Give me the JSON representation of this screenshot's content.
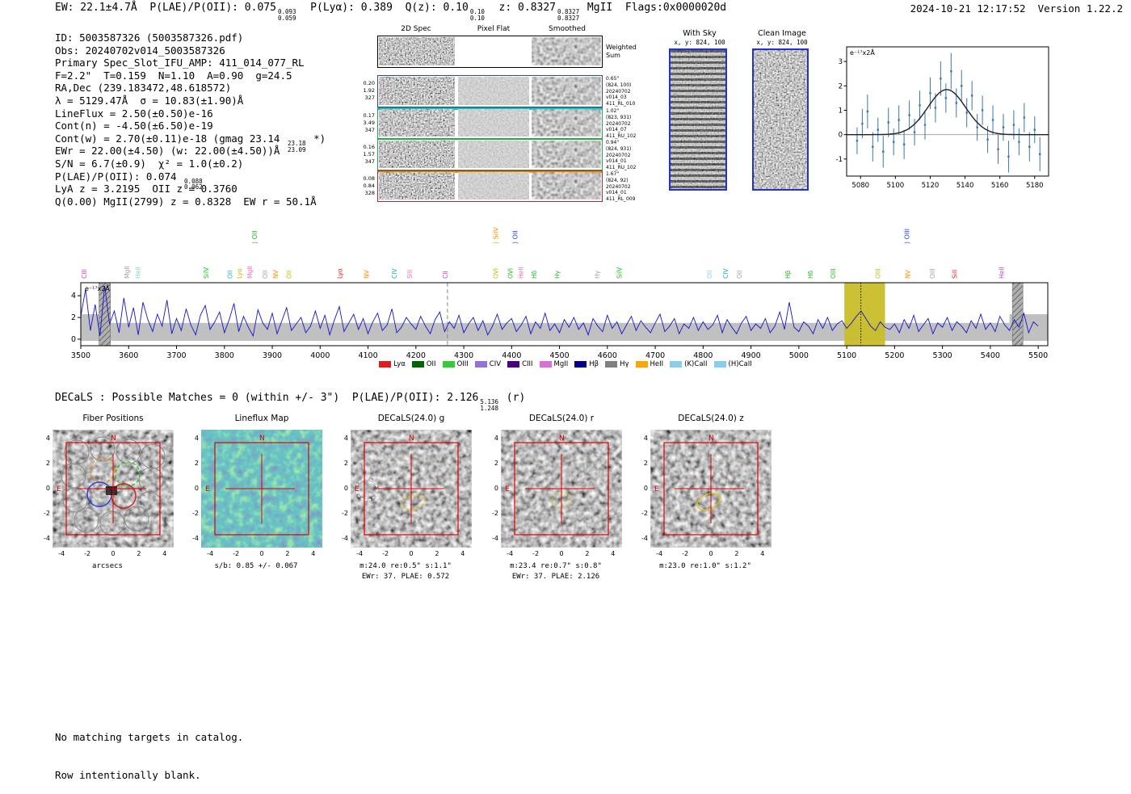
{
  "header": {
    "parts": [
      {
        "t": "EW: 22.1±4.7Å  P(LAE)/P(OII): 0.075"
      },
      {
        "sup": "0.093",
        "sub": "0.059"
      },
      {
        "t": "  P(Lyα): 0.389  Q(z): 0.10"
      },
      {
        "sup": "0.10",
        "sub": "0.10"
      },
      {
        "t": "  z: 0.8327"
      },
      {
        "sup": "0.8327",
        "sub": "0.8327"
      },
      {
        "t": " MgII  Flags:0x0000020d"
      }
    ],
    "right": "2024-10-21 12:17:52  Version 1.22.2"
  },
  "info": {
    "lines": [
      [
        {
          "t": "ID: 5003587326 (5003587326.pdf)"
        }
      ],
      [
        {
          "t": "Obs: 20240702v014_5003587326"
        }
      ],
      [
        {
          "t": "Primary Spec_Slot_IFU_AMP: 411_014_077_RL"
        }
      ],
      [
        {
          "t": "F=2.2\"  T=0.159  N=1.10  A=0.90  g=24.5"
        }
      ],
      [
        {
          "t": "RA,Dec (239.183472,48.618572)"
        }
      ],
      [
        {
          "t": "λ = 5129.47Å  σ = 10.83(±1.90)Å"
        }
      ],
      [
        {
          "t": "LineFlux = 2.50(±0.50)e-16"
        }
      ],
      [
        {
          "t": "Cont(n) = -4.50(±6.50)e-19"
        }
      ],
      [
        {
          "t": "Cont(w) = 2.70(±0.11)e-18 (gmag 23.14 "
        },
        {
          "sup": "23.18",
          "sub": "23.09"
        },
        {
          "t": " *)"
        }
      ],
      [
        {
          "t": "EWr = 22.00(±4.50) (w: 22.00(±4.50))Å"
        }
      ],
      [
        {
          "t": "S/N = 6.7(±0.9)  χ² = 1.0(±0.2)"
        }
      ],
      [
        {
          "t": "P(LAE)/P(OII): 0.074 "
        },
        {
          "sup": "0.088",
          "sub": "0.062"
        }
      ],
      [
        {
          "t": "LyA z = 3.2195  OII z = 0.3760"
        }
      ],
      [
        {
          "t": "Q(0.00) MgII(2799) z = 0.8328  EW r = 50.1Å"
        }
      ]
    ]
  },
  "spec2d": {
    "col_titles": [
      "2D Spec",
      "Pixel Flat",
      "Smoothed"
    ],
    "rows": [
      {
        "border": "#000000",
        "left": [],
        "right": [
          "Weighted",
          "Sum"
        ],
        "flat": "white"
      },
      {
        "border": "#2244cc",
        "left": [
          "0.20",
          "1.92",
          "327"
        ],
        "right": [
          "0.65\"",
          "(824, 100)",
          "20240702",
          "v014_03",
          "411_RL_010"
        ]
      },
      {
        "border": "#22aa44",
        "top": "#00cccc",
        "left": [
          "0.17",
          "3.49",
          "347"
        ],
        "right": [
          "1.02\"",
          "(823, 931)",
          "20240702",
          "v014_07",
          "411_RU_102"
        ]
      },
      {
        "border": "#22aa44",
        "left": [
          "0.16",
          "1.57",
          "347"
        ],
        "right": [
          "0.94\"",
          "(824, 931)",
          "20240702",
          "v014_01",
          "411_RU_102"
        ]
      },
      {
        "border": "#cc2222",
        "top": "#ff8800",
        "left": [
          "0.08",
          "0.84",
          "328"
        ],
        "right": [
          "1.67\"",
          "(824, 92)",
          "20240702",
          "v014_01",
          "411_RL_009"
        ]
      }
    ]
  },
  "with_sky": {
    "title": "With Sky",
    "xy": "x, y: 824, 100"
  },
  "clean_image": {
    "title": "Clean Image",
    "xy": "x, y: 824, 100"
  },
  "decals": {
    "parts": [
      {
        "t": "DECaLS : Possible Matches = 0 (within +/- 3\")  P(LAE)/P(OII): 2.126"
      },
      {
        "sup": "5.136",
        "sub": "1.248"
      },
      {
        "t": " (r)"
      }
    ]
  },
  "legend": {
    "items": [
      {
        "label": "Lyα",
        "color": "#e41a1c"
      },
      {
        "label": "OII",
        "color": "#006400"
      },
      {
        "label": "OIII",
        "color": "#32cd32"
      },
      {
        "label": "CIV",
        "color": "#9370db"
      },
      {
        "label": "CIII",
        "color": "#4b0082"
      },
      {
        "label": "MgII",
        "color": "#da70d6"
      },
      {
        "label": "Hβ",
        "color": "#00008b"
      },
      {
        "label": "Hγ",
        "color": "#808080"
      },
      {
        "label": "HeII",
        "color": "#ffa500"
      },
      {
        "label": "(K)CaII",
        "color": "#87ceeb"
      },
      {
        "label": "(H)CaII",
        "color": "#87ceeb"
      }
    ]
  },
  "cutouts": {
    "tick_values": [
      -4,
      -2,
      0,
      2,
      4
    ],
    "compass": {
      "n": "N",
      "e": "E"
    },
    "panels": [
      {
        "title": "Fiber Positions",
        "cap1": "arcsecs",
        "cap2": ""
      },
      {
        "title": "Lineflux Map",
        "cap1": "s/b: 0.85 +/- 0.067",
        "cap2": ""
      },
      {
        "title": "DECaLS(24.0) g",
        "cap1": "m:24.0 re:0.5\" s:1.1\"",
        "cap2": "EWr: 37. PLAE: 0.572"
      },
      {
        "title": "DECaLS(24.0) r",
        "cap1": "m:23.4 re:0.7\" s:0.8\"",
        "cap2": "EWr: 37. PLAE: 2.126"
      },
      {
        "title": "DECaLS(24.0) z",
        "cap1": "m:23.0 re:1.0\" s:1.2\"",
        "cap2": ""
      }
    ]
  },
  "footer": {
    "line1": "No matching targets in catalog.",
    "line2": "Row intentionally blank."
  },
  "chart_data": [
    {
      "id": "emission_line_fit",
      "type": "scatter",
      "ylabel": "e⁻¹⁷x2Å",
      "xlim": [
        5072,
        5188
      ],
      "ylim": [
        -1.7,
        3.6
      ],
      "xticks": [
        5080,
        5100,
        5120,
        5140,
        5160,
        5180
      ],
      "yticks": [
        -1,
        0,
        1,
        2,
        3
      ],
      "gaussian": {
        "center": 5129.47,
        "sigma": 10.83,
        "amplitude": 1.85
      },
      "points": [
        [
          5078,
          -0.25,
          0.55
        ],
        [
          5081,
          0.45,
          0.6
        ],
        [
          5084,
          0.95,
          0.7
        ],
        [
          5087,
          -0.5,
          0.6
        ],
        [
          5090,
          0.2,
          0.5
        ],
        [
          5093,
          -0.7,
          0.65
        ],
        [
          5096,
          0.5,
          0.6
        ],
        [
          5099,
          -0.3,
          0.55
        ],
        [
          5102,
          0.6,
          0.6
        ],
        [
          5105,
          -0.4,
          0.6
        ],
        [
          5108,
          0.8,
          0.6
        ],
        [
          5111,
          0.1,
          0.55
        ],
        [
          5114,
          1.2,
          0.6
        ],
        [
          5117,
          0.4,
          0.6
        ],
        [
          5120,
          1.7,
          0.65
        ],
        [
          5123,
          1.1,
          0.6
        ],
        [
          5126,
          2.3,
          0.7
        ],
        [
          5129,
          1.5,
          0.6
        ],
        [
          5132,
          2.6,
          0.75
        ],
        [
          5135,
          1.3,
          0.6
        ],
        [
          5138,
          2.0,
          0.65
        ],
        [
          5141,
          0.9,
          0.6
        ],
        [
          5144,
          1.6,
          0.6
        ],
        [
          5147,
          0.3,
          0.55
        ],
        [
          5150,
          1.0,
          0.6
        ],
        [
          5153,
          -0.2,
          0.55
        ],
        [
          5156,
          0.6,
          0.6
        ],
        [
          5159,
          -0.6,
          0.6
        ],
        [
          5162,
          0.3,
          0.55
        ],
        [
          5165,
          -0.9,
          0.65
        ],
        [
          5168,
          0.4,
          0.6
        ],
        [
          5171,
          -0.3,
          0.55
        ],
        [
          5174,
          0.7,
          0.6
        ],
        [
          5177,
          -0.5,
          0.6
        ],
        [
          5180,
          0.2,
          0.55
        ],
        [
          5183,
          -0.8,
          0.7
        ]
      ]
    },
    {
      "id": "full_spectrum",
      "type": "line",
      "ylabel": "e⁻¹⁷x2Å",
      "xlim": [
        3500,
        5520
      ],
      "ylim": [
        -0.6,
        5.2
      ],
      "xticks": [
        3500,
        3600,
        3700,
        3800,
        3900,
        4000,
        4100,
        4200,
        4300,
        4400,
        4500,
        4600,
        4700,
        4800,
        4900,
        5000,
        5100,
        5200,
        5300,
        5400,
        5500
      ],
      "yticks": [
        0,
        2,
        4
      ],
      "x_start": 3500,
      "x_step": 10,
      "values": [
        2.1,
        4.6,
        0.8,
        3.2,
        0.3,
        4.9,
        1.4,
        2.6,
        0.6,
        3.8,
        1.1,
        2.9,
        0.4,
        3.4,
        1.8,
        0.7,
        2.3,
        1.2,
        3.6,
        0.5,
        1.9,
        0.8,
        2.8,
        1.3,
        0.4,
        2.2,
        3.1,
        0.9,
        1.6,
        2.5,
        0.6,
        1.8,
        3.3,
        0.7,
        2.1,
        1.1,
        0.3,
        2.7,
        1.5,
        0.9,
        2.4,
        0.5,
        1.7,
        2.9,
        0.8,
        1.4,
        2.0,
        0.6,
        1.2,
        2.6,
        1.0,
        2.2,
        0.4,
        1.8,
        3.0,
        0.7,
        1.5,
        2.3,
        0.9,
        1.9,
        0.5,
        1.6,
        2.4,
        0.8,
        1.3,
        2.8,
        0.6,
        1.1,
        2.0,
        1.4,
        0.9,
        2.1,
        1.2,
        0.5,
        1.8,
        2.5,
        0.7,
        1.6,
        1.0,
        2.2,
        0.6,
        1.4,
        2.0,
        0.8,
        1.7,
        0.4,
        1.2,
        2.3,
        0.9,
        1.5,
        1.9,
        0.7,
        1.3,
        2.1,
        0.5,
        1.6,
        1.0,
        2.4,
        0.8,
        1.4,
        0.6,
        1.8,
        1.1,
        2.0,
        0.9,
        1.5,
        0.4,
        1.9,
        1.2,
        0.7,
        2.2,
        1.0,
        1.6,
        0.5,
        1.3,
        2.1,
        0.8,
        1.7,
        1.1,
        0.6,
        1.5,
        2.3,
        0.7,
        1.2,
        1.9,
        0.5,
        1.4,
        1.0,
        2.0,
        0.8,
        1.6,
        0.9,
        1.3,
        2.2,
        0.6,
        1.8,
        1.1,
        0.5,
        1.5,
        2.1,
        0.8,
        1.4,
        1.0,
        1.9,
        0.6,
        1.2,
        2.5,
        0.9,
        3.4,
        1.1,
        0.7,
        1.6,
        1.2,
        0.5,
        1.8,
        1.0,
        2.0,
        0.8,
        1.4,
        1.7,
        1.0,
        1.5,
        2.1,
        2.6,
        1.9,
        1.2,
        0.8,
        1.6,
        1.1,
        0.9,
        1.4,
        0.6,
        1.8,
        1.0,
        2.2,
        0.7,
        1.3,
        1.9,
        0.5,
        1.5,
        1.1,
        2.0,
        0.8,
        1.6,
        1.2,
        0.6,
        1.7,
        1.0,
        2.3,
        0.9,
        1.5,
        0.7,
        2.1,
        1.3,
        0.8,
        1.8,
        1.1,
        2.4,
        0.6,
        1.6,
        1.2
      ],
      "noise_band": {
        "low": -0.15,
        "high": 1.5,
        "edge_high": 2.3,
        "left_edge_end": 3560,
        "right_edge_start": 5440
      },
      "highlight_band": {
        "x0": 5095,
        "x1": 5180,
        "color": "#c9bd2a"
      },
      "marker_line": {
        "x": 5129.47,
        "color": "#000000"
      },
      "dashed_line": {
        "x": 4266,
        "color": "#888888"
      },
      "hatched_bands": [
        [
          3538,
          3562
        ],
        [
          5446,
          5468
        ]
      ],
      "emission_labels_row1": [
        {
          "label": "CIII",
          "wavelength": 3512,
          "color": "#cc44cc"
        },
        {
          "label": "MgII",
          "wavelength": 3601,
          "color": "#a0a0a0"
        },
        {
          "label": "HeII",
          "wavelength": 3624,
          "color": "#87ceeb"
        },
        {
          "label": "SiIV",
          "wavelength": 3767,
          "color": "#22bb22"
        },
        {
          "label": "OII",
          "wavelength": 3816,
          "color": "#20b2aa"
        },
        {
          "label": "Lyα",
          "wavelength": 3836,
          "color": "#bcbc00"
        },
        {
          "label": "MgII",
          "wavelength": 3858,
          "color": "#ff69b4"
        },
        {
          "label": "OII",
          "wavelength": 3890,
          "color": "#a0a0a0"
        },
        {
          "label": "NV",
          "wavelength": 3912,
          "color": "#ff8c00"
        },
        {
          "label": "OII",
          "wavelength": 3940,
          "color": "#bcbc00"
        },
        {
          "label": "Lyα",
          "wavelength": 4046,
          "color": "#dd2222"
        },
        {
          "label": "NV",
          "wavelength": 4102,
          "color": "#ff8c00"
        },
        {
          "label": "CIV",
          "wavelength": 4160,
          "color": "#20b2aa"
        },
        {
          "label": "SiII",
          "wavelength": 4192,
          "color": "#ff69b4"
        },
        {
          "label": "CII",
          "wavelength": 4266,
          "color": "#cc44cc"
        },
        {
          "label": "OVI",
          "wavelength": 4372,
          "color": "#bcbc00"
        },
        {
          "label": "OVI",
          "wavelength": 4402,
          "color": "#22bb22"
        },
        {
          "label": "HeII",
          "wavelength": 4424,
          "color": "#ff69b4"
        },
        {
          "label": "Hδ",
          "wavelength": 4452,
          "color": "#22bb22"
        },
        {
          "label": "Hγ",
          "wavelength": 4500,
          "color": "#22bb22"
        },
        {
          "label": "Hγ",
          "wavelength": 4583,
          "color": "#a0a0a0"
        },
        {
          "label": "SiIV",
          "wavelength": 4630,
          "color": "#22bb22"
        },
        {
          "label": "OII",
          "wavelength": 4818,
          "color": "#87ceeb"
        },
        {
          "label": "CIV",
          "wavelength": 4852,
          "color": "#20b2aa"
        },
        {
          "label": "OII",
          "wavelength": 4880,
          "color": "#a0a0a0"
        },
        {
          "label": "Hβ",
          "wavelength": 4982,
          "color": "#22bb22"
        },
        {
          "label": "Hδ",
          "wavelength": 5029,
          "color": "#22bb22"
        },
        {
          "label": "OIII",
          "wavelength": 5076,
          "color": "#22bb22"
        },
        {
          "label": "OIII",
          "wavelength": 5170,
          "color": "#bcbc00"
        },
        {
          "label": "NV",
          "wavelength": 5232,
          "color": "#ff8c00"
        },
        {
          "label": "OIII",
          "wavelength": 5284,
          "color": "#a0a0a0"
        },
        {
          "label": "SiII",
          "wavelength": 5330,
          "color": "#dd2222"
        },
        {
          "label": "HeII",
          "wavelength": 5428,
          "color": "#cc44cc"
        }
      ],
      "emission_labels_row2": [
        {
          "label": "OII",
          "wavelength": 3868,
          "color": "#22bb22"
        },
        {
          "label": "SiIV",
          "wavelength": 4372,
          "color": "#ff8c00"
        },
        {
          "label": "OII",
          "wavelength": 4412,
          "color": "#2244dd"
        },
        {
          "label": "OIII",
          "wavelength": 5231,
          "color": "#2244dd"
        }
      ]
    }
  ]
}
